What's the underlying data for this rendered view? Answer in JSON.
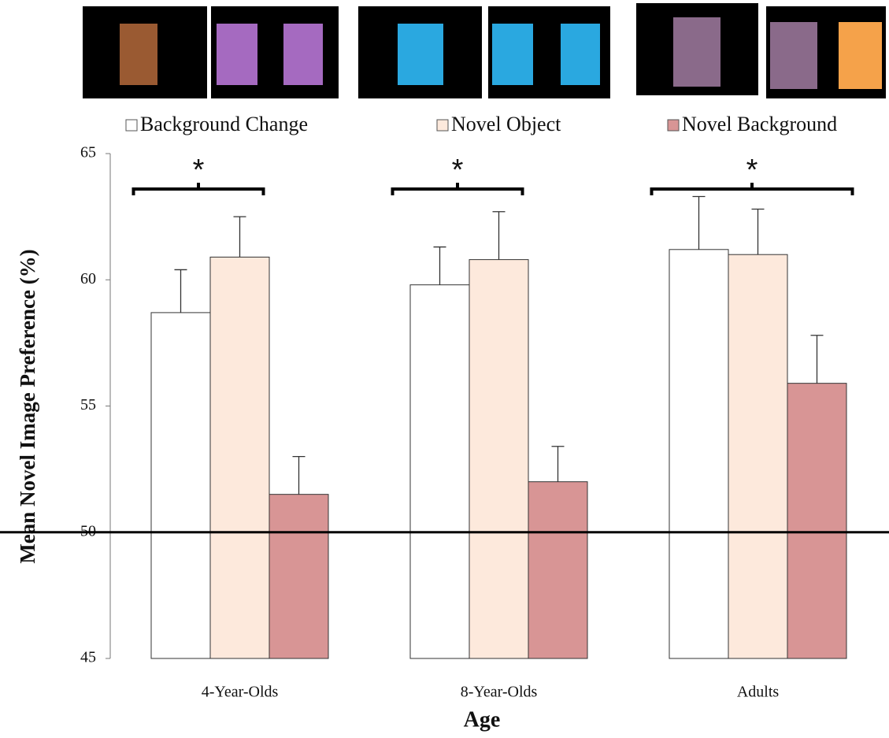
{
  "chart_data": {
    "type": "bar",
    "y_label": "Mean Novel Image Preference (%)",
    "x_label": "Age",
    "categories": [
      "4-Year-Olds",
      "8-Year-Olds",
      "Adults"
    ],
    "series": [
      {
        "name": "Background Change",
        "color": "#ffffff",
        "values": [
          58.7,
          59.8,
          61.2
        ],
        "errors": [
          1.7,
          1.5,
          2.1
        ]
      },
      {
        "name": "Novel Object",
        "color": "#fde9dc",
        "values": [
          60.9,
          60.8,
          61.0
        ],
        "errors": [
          1.6,
          1.9,
          1.8
        ]
      },
      {
        "name": "Novel Background",
        "color": "#d89595",
        "values": [
          51.5,
          52.0,
          55.9
        ],
        "errors": [
          1.5,
          1.4,
          1.9
        ]
      }
    ],
    "significance": [
      "*",
      "*",
      "*"
    ],
    "reference_line": 50,
    "ylim": [
      45,
      65
    ],
    "yticks": [
      45,
      50,
      55,
      60,
      65
    ]
  }
}
